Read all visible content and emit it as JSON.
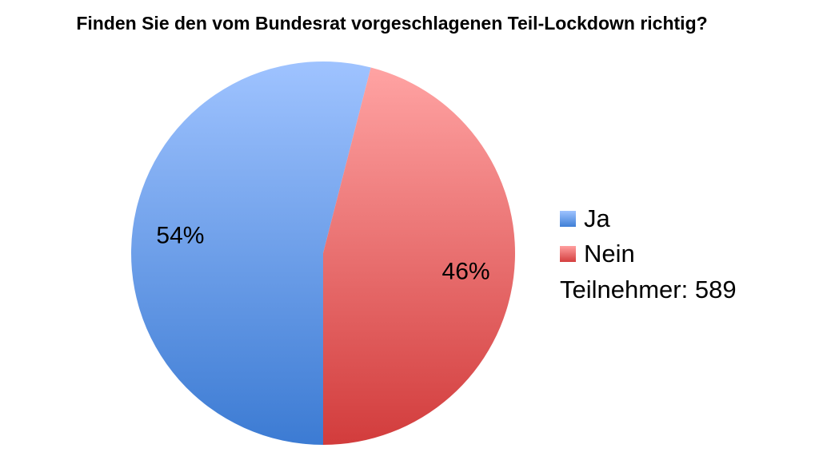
{
  "chart_data": {
    "type": "pie",
    "title": "Finden Sie den vom Bundesrat vorgeschlagenen Teil-Lockdown richtig?",
    "categories": [
      "Ja",
      "Nein"
    ],
    "values": [
      54,
      46
    ],
    "data_labels": [
      "54%",
      "46%"
    ],
    "colors": [
      "#4a86d8",
      "#d84a4a"
    ],
    "legend_position": "right",
    "annotation": "Teilnehmer: 589"
  }
}
